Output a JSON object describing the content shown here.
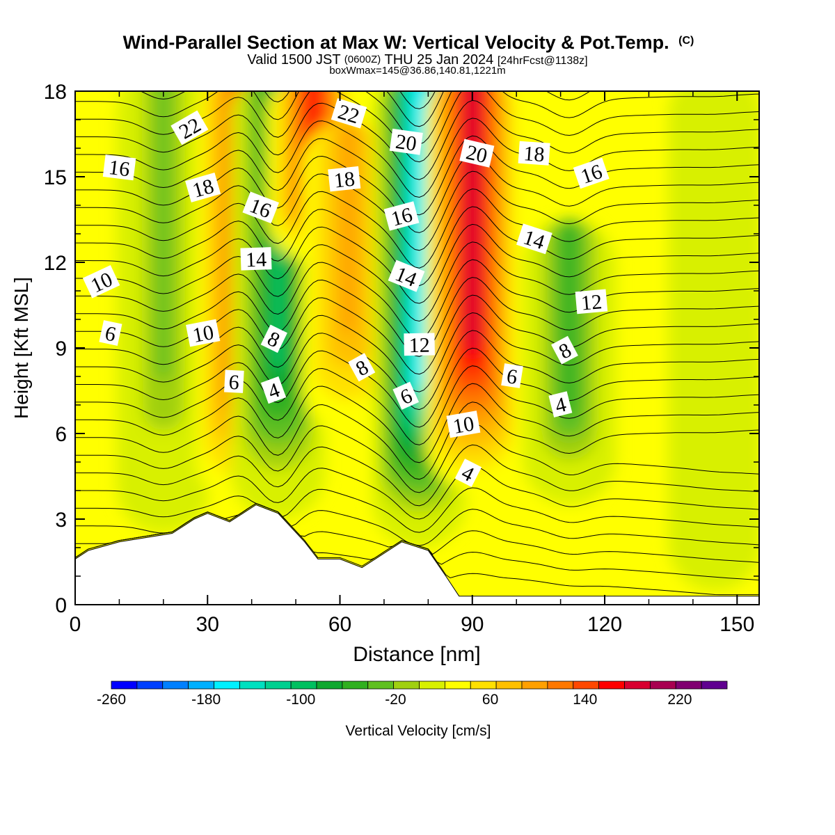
{
  "chart_data": {
    "type": "contour",
    "title": "Wind-Parallel Section at Max W: Vertical Velocity & Pot.Temp.",
    "copyright": "(C)",
    "subtitle": {
      "pre": "Valid 1500 JST",
      "utc": "(0600Z)",
      "date": "THU 25 Jan 2024",
      "fcst": "[24hrFcst@1138z]"
    },
    "box_note": "boxWmax=145@36.86,140.81,1221m",
    "xlabel": "Distance [nm]",
    "ylabel": "Height [Kft MSL]",
    "xlim": [
      0,
      155
    ],
    "ylim": [
      0,
      18
    ],
    "x_ticks": [
      "0",
      "30",
      "60",
      "90",
      "120",
      "150"
    ],
    "y_ticks": [
      "0",
      "3",
      "6",
      "9",
      "12",
      "15",
      "18"
    ],
    "colorbar": {
      "label": "Vertical Velocity [cm/s]",
      "range": [
        -260,
        260
      ],
      "step": 20,
      "tick_labels": [
        "-260",
        "-180",
        "-100",
        "-20",
        "60",
        "140",
        "220"
      ],
      "colors": [
        "#0000ff",
        "#0040ff",
        "#0080ff",
        "#00b0ff",
        "#00f0ff",
        "#00e0c0",
        "#00d090",
        "#00c060",
        "#10a830",
        "#30b020",
        "#60c020",
        "#a0d010",
        "#d8f000",
        "#ffff00",
        "#ffe000",
        "#ffc000",
        "#ffa000",
        "#ff7800",
        "#ff4800",
        "#ff0000",
        "#d80030",
        "#a80050",
        "#800070",
        "#600090"
      ]
    },
    "terrain_kft": [
      [
        0,
        1.6
      ],
      [
        3,
        1.9
      ],
      [
        10,
        2.2
      ],
      [
        22,
        2.5
      ],
      [
        25,
        2.8
      ],
      [
        27,
        3.0
      ],
      [
        30,
        3.2
      ],
      [
        35,
        2.9
      ],
      [
        38,
        3.2
      ],
      [
        41,
        3.5
      ],
      [
        46,
        3.2
      ],
      [
        52,
        2.2
      ],
      [
        55,
        1.6
      ],
      [
        60,
        1.6
      ],
      [
        65,
        1.3
      ],
      [
        68,
        1.6
      ],
      [
        71,
        1.9
      ],
      [
        74,
        2.2
      ],
      [
        80,
        1.9
      ],
      [
        84,
        1.0
      ],
      [
        87,
        0.3
      ],
      [
        90,
        0.3
      ],
      [
        155,
        0.3
      ]
    ],
    "w_features": [
      {
        "x": 20,
        "top": 18,
        "bottom": 2.5,
        "w": -60
      },
      {
        "x": 38,
        "top": 18,
        "bottom": 3.5,
        "w": 100
      },
      {
        "x": 46,
        "top": 18,
        "bottom": 3.0,
        "w": -110
      },
      {
        "x": 54,
        "top": 18,
        "bottom": 12,
        "w": 130
      },
      {
        "x": 62,
        "top": 16,
        "bottom": 6,
        "w": 60
      },
      {
        "x": 78,
        "top": 18,
        "bottom": 2.0,
        "w": -170
      },
      {
        "x": 90,
        "top": 18,
        "bottom": 4.0,
        "w": 145
      },
      {
        "x": 112,
        "top": 12.5,
        "bottom": 3.5,
        "w": -70
      },
      {
        "x": 145,
        "top": 18,
        "bottom": 0.5,
        "w": -5
      }
    ],
    "theta_labels": [
      {
        "text": "22",
        "x": 26,
        "y": 16.7
      },
      {
        "text": "16",
        "x": 10,
        "y": 15.3
      },
      {
        "text": "18",
        "x": 29,
        "y": 14.6
      },
      {
        "text": "16",
        "x": 42,
        "y": 13.9
      },
      {
        "text": "14",
        "x": 41,
        "y": 12.1
      },
      {
        "text": "10",
        "x": 6,
        "y": 11.3
      },
      {
        "text": "6",
        "x": 8,
        "y": 9.5
      },
      {
        "text": "10",
        "x": 29,
        "y": 9.5
      },
      {
        "text": "8",
        "x": 45,
        "y": 9.3
      },
      {
        "text": "6",
        "x": 36,
        "y": 7.8
      },
      {
        "text": "4",
        "x": 45,
        "y": 7.5
      },
      {
        "text": "22",
        "x": 62,
        "y": 17.2
      },
      {
        "text": "18",
        "x": 61,
        "y": 14.9
      },
      {
        "text": "8",
        "x": 65,
        "y": 8.3
      },
      {
        "text": "20",
        "x": 75,
        "y": 16.2
      },
      {
        "text": "16",
        "x": 74,
        "y": 13.6
      },
      {
        "text": "14",
        "x": 75,
        "y": 11.5
      },
      {
        "text": "12",
        "x": 78,
        "y": 9.1
      },
      {
        "text": "6",
        "x": 75,
        "y": 7.3
      },
      {
        "text": "20",
        "x": 91,
        "y": 15.8
      },
      {
        "text": "10",
        "x": 88,
        "y": 6.3
      },
      {
        "text": "4",
        "x": 89,
        "y": 4.6
      },
      {
        "text": "18",
        "x": 104,
        "y": 15.8
      },
      {
        "text": "16",
        "x": 117,
        "y": 15.1
      },
      {
        "text": "14",
        "x": 104,
        "y": 12.8
      },
      {
        "text": "12",
        "x": 117,
        "y": 10.6
      },
      {
        "text": "8",
        "x": 111,
        "y": 8.9
      },
      {
        "text": "6",
        "x": 99,
        "y": 8.0
      },
      {
        "text": "4",
        "x": 110,
        "y": 7.0
      }
    ]
  }
}
